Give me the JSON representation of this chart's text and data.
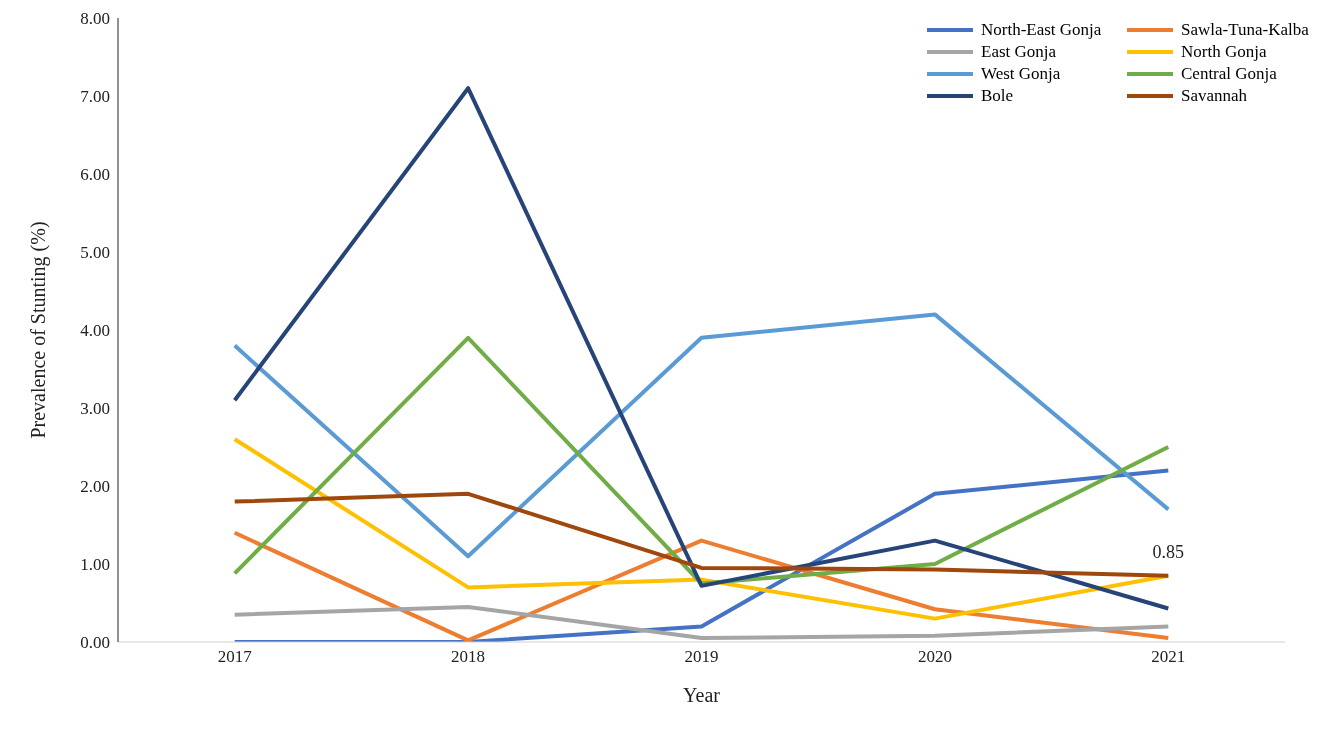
{
  "chart_data": {
    "type": "line",
    "xlabel": "Year",
    "ylabel": "Prevalence of Stunting (%)",
    "categories": [
      "2017",
      "2018",
      "2019",
      "2020",
      "2021"
    ],
    "series": [
      {
        "name": "North-East Gonja",
        "color": "#4472c4",
        "values": [
          0,
          0,
          0.2,
          1.9,
          2.2
        ]
      },
      {
        "name": "Sawla-Tuna-Kalba",
        "color": "#ed7d31",
        "values": [
          1.4,
          0.02,
          1.3,
          0.42,
          0.05
        ]
      },
      {
        "name": "East Gonja",
        "color": "#a5a5a5",
        "values": [
          0.35,
          0.45,
          0.05,
          0.08,
          0.2
        ]
      },
      {
        "name": "North Gonja",
        "color": "#ffc000",
        "values": [
          2.6,
          0.7,
          0.8,
          0.3,
          0.85
        ]
      },
      {
        "name": "West Gonja",
        "color": "#5b9bd5",
        "values": [
          3.8,
          1.1,
          3.9,
          4.2,
          1.7
        ]
      },
      {
        "name": "Central Gonja",
        "color": "#70ad47",
        "values": [
          0.88,
          3.9,
          0.75,
          1.0,
          2.5
        ]
      },
      {
        "name": "Bole",
        "color": "#264478",
        "values": [
          3.1,
          7.1,
          0.72,
          1.3,
          0.43
        ]
      },
      {
        "name": "Savannah",
        "color": "#9e480e",
        "values": [
          1.8,
          1.9,
          0.95,
          0.93,
          0.85
        ]
      }
    ],
    "ylim": [
      0,
      8
    ],
    "yticks": [
      {
        "value": 0,
        "label": "0.00"
      },
      {
        "value": 1,
        "label": "1.00"
      },
      {
        "value": 2,
        "label": "2.00"
      },
      {
        "value": 3,
        "label": "3.00"
      },
      {
        "value": 4,
        "label": "4.00"
      },
      {
        "value": 5,
        "label": "5.00"
      },
      {
        "value": 6,
        "label": "6.00"
      },
      {
        "value": 7,
        "label": "7.00"
      },
      {
        "value": 8,
        "label": "8.00"
      }
    ],
    "annotations": [
      {
        "text": "0.85",
        "x": "2021",
        "y": 0.85
      }
    ],
    "grid": false,
    "legend": "top right",
    "marker": "none",
    "line_style": "solid"
  }
}
